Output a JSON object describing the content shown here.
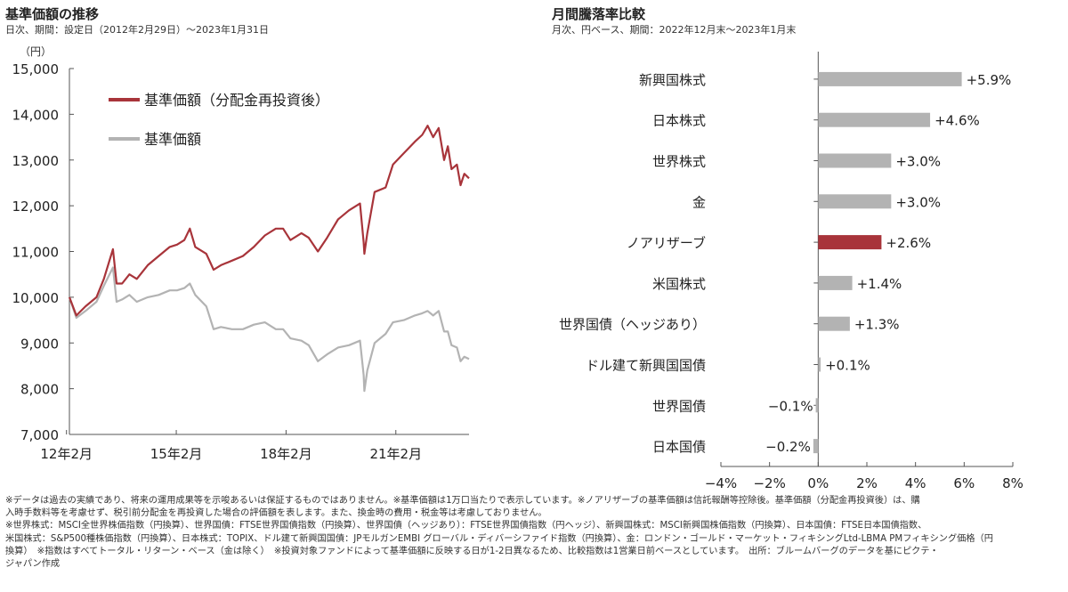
{
  "left_panel": {
    "title": "基準価額の推移",
    "subtitle": "日次、期間：設定日（2012年2月29日）～2023年1月31日"
  },
  "right_panel": {
    "title": "月間騰落率比較",
    "subtitle": "月次、円ベース、期間：2022年12月末～2023年1月末"
  },
  "colors": {
    "accent": "#a8343a",
    "grey": "#b3b3b3",
    "axis": "#555555"
  },
  "chart_data": [
    {
      "type": "line",
      "ylabel": "（円）",
      "ylim": [
        7000,
        15000
      ],
      "yticks": [
        7000,
        8000,
        9000,
        10000,
        11000,
        12000,
        13000,
        14000,
        15000
      ],
      "ytick_labels": [
        "7,000",
        "8,000",
        "9,000",
        "10,000",
        "11,000",
        "12,000",
        "13,000",
        "14,000",
        "15,000"
      ],
      "xlim": [
        2012.16,
        2023.08
      ],
      "xticks": [
        2012.08,
        2015.08,
        2018.08,
        2021.08
      ],
      "xtick_labels": [
        "12年2月",
        "15年2月",
        "18年2月",
        "21年2月"
      ],
      "grid": false,
      "legend_position": "top-left",
      "series": [
        {
          "name": "基準価額（分配金再投資後）",
          "color": "#a8343a",
          "points": [
            [
              2012.16,
              10000
            ],
            [
              2012.35,
              9600
            ],
            [
              2012.6,
              9800
            ],
            [
              2012.9,
              10000
            ],
            [
              2013.1,
              10400
            ],
            [
              2013.35,
              11050
            ],
            [
              2013.45,
              10300
            ],
            [
              2013.6,
              10300
            ],
            [
              2013.8,
              10500
            ],
            [
              2014.0,
              10400
            ],
            [
              2014.3,
              10700
            ],
            [
              2014.6,
              10900
            ],
            [
              2014.9,
              11100
            ],
            [
              2015.1,
              11150
            ],
            [
              2015.3,
              11250
            ],
            [
              2015.45,
              11500
            ],
            [
              2015.6,
              11100
            ],
            [
              2015.9,
              10950
            ],
            [
              2016.1,
              10600
            ],
            [
              2016.3,
              10700
            ],
            [
              2016.6,
              10800
            ],
            [
              2016.9,
              10900
            ],
            [
              2017.2,
              11100
            ],
            [
              2017.5,
              11350
            ],
            [
              2017.8,
              11500
            ],
            [
              2018.0,
              11500
            ],
            [
              2018.2,
              11250
            ],
            [
              2018.5,
              11400
            ],
            [
              2018.7,
              11300
            ],
            [
              2018.95,
              11000
            ],
            [
              2019.2,
              11300
            ],
            [
              2019.5,
              11700
            ],
            [
              2019.8,
              11900
            ],
            [
              2020.1,
              12050
            ],
            [
              2020.2,
              11200
            ],
            [
              2020.22,
              10950
            ],
            [
              2020.3,
              11400
            ],
            [
              2020.5,
              12300
            ],
            [
              2020.8,
              12400
            ],
            [
              2021.0,
              12900
            ],
            [
              2021.3,
              13150
            ],
            [
              2021.6,
              13400
            ],
            [
              2021.8,
              13550
            ],
            [
              2021.95,
              13750
            ],
            [
              2022.1,
              13500
            ],
            [
              2022.25,
              13700
            ],
            [
              2022.4,
              13000
            ],
            [
              2022.5,
              13300
            ],
            [
              2022.6,
              12800
            ],
            [
              2022.75,
              12900
            ],
            [
              2022.85,
              12450
            ],
            [
              2022.95,
              12700
            ],
            [
              2023.08,
              12600
            ]
          ]
        },
        {
          "name": "基準価額",
          "color": "#b3b3b3",
          "points": [
            [
              2012.16,
              10000
            ],
            [
              2012.35,
              9550
            ],
            [
              2012.6,
              9700
            ],
            [
              2012.9,
              9900
            ],
            [
              2013.1,
              10250
            ],
            [
              2013.35,
              10650
            ],
            [
              2013.45,
              9900
            ],
            [
              2013.6,
              9950
            ],
            [
              2013.8,
              10050
            ],
            [
              2014.0,
              9900
            ],
            [
              2014.3,
              10000
            ],
            [
              2014.6,
              10050
            ],
            [
              2014.9,
              10150
            ],
            [
              2015.1,
              10150
            ],
            [
              2015.3,
              10200
            ],
            [
              2015.45,
              10300
            ],
            [
              2015.6,
              10050
            ],
            [
              2015.9,
              9800
            ],
            [
              2016.1,
              9300
            ],
            [
              2016.3,
              9350
            ],
            [
              2016.6,
              9300
            ],
            [
              2016.9,
              9300
            ],
            [
              2017.2,
              9400
            ],
            [
              2017.5,
              9450
            ],
            [
              2017.8,
              9300
            ],
            [
              2018.0,
              9300
            ],
            [
              2018.2,
              9100
            ],
            [
              2018.5,
              9050
            ],
            [
              2018.7,
              8950
            ],
            [
              2018.95,
              8600
            ],
            [
              2019.2,
              8750
            ],
            [
              2019.5,
              8900
            ],
            [
              2019.8,
              8950
            ],
            [
              2020.1,
              9050
            ],
            [
              2020.2,
              8300
            ],
            [
              2020.22,
              7950
            ],
            [
              2020.3,
              8400
            ],
            [
              2020.5,
              9000
            ],
            [
              2020.8,
              9200
            ],
            [
              2021.0,
              9450
            ],
            [
              2021.3,
              9500
            ],
            [
              2021.6,
              9600
            ],
            [
              2021.8,
              9650
            ],
            [
              2021.95,
              9700
            ],
            [
              2022.1,
              9600
            ],
            [
              2022.25,
              9700
            ],
            [
              2022.4,
              9250
            ],
            [
              2022.5,
              9250
            ],
            [
              2022.6,
              8950
            ],
            [
              2022.75,
              8900
            ],
            [
              2022.85,
              8600
            ],
            [
              2022.95,
              8700
            ],
            [
              2023.08,
              8650
            ]
          ]
        }
      ]
    },
    {
      "type": "bar",
      "orientation": "horizontal",
      "categories": [
        "新興国株式",
        "日本株式",
        "世界株式",
        "金",
        "ノアリザーブ",
        "米国株式",
        "世界国債（ヘッジあり）",
        "ドル建て新興国国債",
        "世界国債",
        "日本国債"
      ],
      "values": [
        5.9,
        4.6,
        3.0,
        3.0,
        2.6,
        1.4,
        1.3,
        0.1,
        -0.1,
        -0.2
      ],
      "value_labels": [
        "+5.9%",
        "+4.6%",
        "+3.0%",
        "+3.0%",
        "+2.6%",
        "+1.4%",
        "+1.3%",
        "+0.1%",
        "−0.1%",
        "−0.2%"
      ],
      "highlight_category": "ノアリザーブ",
      "xlim": [
        -4,
        8
      ],
      "xticks": [
        -4,
        -2,
        0,
        2,
        4,
        6,
        8
      ],
      "xtick_labels": [
        "−4%",
        "−2%",
        "0%",
        "2%",
        "4%",
        "6%",
        "8%"
      ],
      "grid": false
    }
  ],
  "notes": [
    "※データは過去の実績であり、将来の運用成果等を示唆あるいは保証するものではありません。※基準価額は1万口当たりで表示しています。※ノアリザーブの基準価額は信託報酬等控除後。基準価額（分配金再投資後）は、購",
    "入時手数料等を考慮せず、税引前分配金を再投資した場合の評価額を表します。また、換金時の費用・税金等は考慮しておりません。",
    "※世界株式：MSCI全世界株価指数（円換算）、世界国債：FTSE世界国債指数（円換算）、世界国債（ヘッジあり）：FTSE世界国債指数（円ヘッジ）、新興国株式：MSCI新興国株価指数（円換算）、日本国債：FTSE日本国債指数、",
    "米国株式：S&P500種株価指数（円換算）、日本株式：TOPIX、ドル建て新興国国債：JPモルガンEMBI グローバル・ディバーシファイド指数（円換算）、金：ロンドン・ゴールド・マーケット・フィキシングLtd-LBMA PMフィキシング価格（円",
    "換算）　※指数はすべてトータル・リターン・ベース（金は除く）　※投資対象ファンドによって基準価額に反映する日が1-2日異なるため、比較指数は1営業日前ベースとしています。　出所：ブルームバーグのデータを基にピクテ・",
    "ジャパン作成"
  ]
}
